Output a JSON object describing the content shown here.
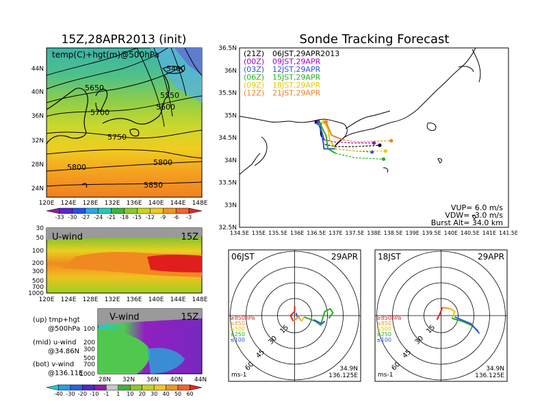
{
  "left_map": {
    "title": "15Z,28APR2013 (init)",
    "label": "temp(C)+hgt(m)@500hPa",
    "lat_ticks": [
      "44N",
      "40N",
      "36N",
      "32N",
      "28N",
      "24N"
    ],
    "lon_ticks": [
      "120E",
      "124E",
      "128E",
      "132E",
      "136E",
      "140E",
      "144E",
      "148E"
    ],
    "contour_labels": [
      "5400",
      "5650",
      "5550",
      "5600",
      "5700",
      "5750",
      "5800",
      "5800",
      "5850"
    ],
    "colorbar": [
      "-33",
      "-30",
      "-27",
      "-24",
      "-21",
      "-18",
      "-15",
      "-12",
      "-9",
      "-6",
      "-3"
    ]
  },
  "u_wind": {
    "label": "U-wind",
    "time": "15Z",
    "levels": [
      "30",
      "50",
      "100",
      "200",
      "300",
      "500",
      "700",
      "1000"
    ],
    "lon_ticks": [
      "120E",
      "124E",
      "128E",
      "132E",
      "136E",
      "140E",
      "144E",
      "148E"
    ]
  },
  "v_wind": {
    "label": "V-wind",
    "time": "15Z",
    "levels": [
      "100",
      "200",
      "300",
      "500",
      "700",
      "1000"
    ],
    "lat_ticks": [
      "28N",
      "32N",
      "36N",
      "40N",
      "44N"
    ],
    "colorbar": [
      "-40",
      "-30",
      "-20",
      "-10",
      "-1",
      "1",
      "10",
      "20",
      "30",
      "40",
      "50",
      "60"
    ]
  },
  "legend_text": {
    "up1": "(up)  tmp+hgt",
    "up2": "@500hPa",
    "mid1": "(mid)  u-wind",
    "mid2": "@34.86N",
    "bot1": "(bot)  v-wind",
    "bot2": "@136.11E"
  },
  "tracking": {
    "title": "Sonde Tracking Forecast",
    "lat_ticks": [
      "36.5N",
      "36N",
      "35.5N",
      "35N",
      "34.5N",
      "34N",
      "33.5N",
      "33N",
      "32.5N"
    ],
    "lon_ticks": [
      "134.5E",
      "135E",
      "135.5E",
      "136E",
      "136.5E",
      "137E",
      "137.5E",
      "138E",
      "138.5E",
      "139E",
      "139.5E",
      "140E",
      "140.5E",
      "141E",
      "141.5E"
    ],
    "legend": [
      {
        "time": "(21Z)",
        "label": "06JST,29APR2013",
        "color": "#000000"
      },
      {
        "time": "(00Z)",
        "label": "09JST,29APR",
        "color": "#a000c8"
      },
      {
        "time": "(03Z)",
        "label": "12JST,29APR",
        "color": "#3050e0"
      },
      {
        "time": "(06Z)",
        "label": "15JST,29APR",
        "color": "#20b020"
      },
      {
        "time": "(09Z)",
        "label": "18JST,29APR",
        "color": "#e8c800"
      },
      {
        "time": "(12Z)",
        "label": "21JST,29APR",
        "color": "#f08020"
      }
    ],
    "vup": "VUP=  6.0  m/s",
    "vdw": "VDW= -3.0  m/s",
    "burst": "Burst Alt= 34.0  km"
  },
  "hodo1": {
    "time": "06JST",
    "date": "29APR",
    "rings": [
      "15",
      "30",
      "45",
      "60"
    ],
    "legend": [
      "≥850hPa",
      "≤850",
      "≤500",
      "≤250",
      "≤100"
    ],
    "unit": "ms-1",
    "lat": "34.9N",
    "lon": "136.125E"
  },
  "hodo2": {
    "time": "18JST",
    "date": "29APR",
    "rings": [
      "15",
      "30",
      "45",
      "60"
    ],
    "legend": [
      "≥850hPa",
      "≤850",
      "≤500",
      "≤250",
      "≤100"
    ],
    "unit": "ms-1",
    "lat": "34.9N",
    "lon": "136.125E"
  },
  "chart_data": [
    {
      "type": "line",
      "title": "Sonde Tracking Forecast",
      "xlabel": "",
      "ylabel": "",
      "xlim": [
        134.5,
        141.5
      ],
      "ylim": [
        32.5,
        36.5
      ],
      "series": [
        {
          "name": "(21Z) 06JST,29APR2013",
          "x": [
            136.5,
            136.55,
            136.6,
            136.62,
            136.7,
            137.0,
            137.5,
            138.0,
            138.15
          ],
          "y": [
            34.85,
            34.85,
            34.8,
            34.55,
            34.35,
            34.3,
            34.3,
            34.32,
            34.33
          ]
        },
        {
          "name": "(00Z) 09JST,29APR",
          "x": [
            136.55,
            136.6,
            136.65,
            136.7,
            137.0,
            137.5,
            138.0
          ],
          "y": [
            34.85,
            34.75,
            34.6,
            34.45,
            34.4,
            34.38,
            34.38
          ]
        },
        {
          "name": "(03Z) 12JST,29APR",
          "x": [
            136.55,
            136.65,
            136.7,
            137.0,
            137.5,
            137.95
          ],
          "y": [
            34.82,
            34.6,
            34.25,
            34.25,
            34.2,
            34.18
          ]
        },
        {
          "name": "(06Z) 15JST,29APR",
          "x": [
            136.6,
            136.75,
            136.8,
            137.0,
            137.5,
            138.0,
            138.25
          ],
          "y": [
            34.8,
            34.55,
            34.25,
            34.15,
            34.05,
            34.03,
            34.02
          ]
        },
        {
          "name": "(09Z) 18JST,29APR",
          "x": [
            136.7,
            136.8,
            136.85,
            137.0,
            137.5,
            138.0,
            138.3
          ],
          "y": [
            34.85,
            34.7,
            34.45,
            34.25,
            34.2,
            34.2,
            34.2
          ]
        },
        {
          "name": "(12Z) 21JST,29APR",
          "x": [
            136.75,
            136.85,
            136.9,
            137.2,
            137.6,
            138.0,
            138.45
          ],
          "y": [
            34.85,
            34.65,
            34.55,
            34.45,
            34.4,
            34.42,
            34.43
          ]
        }
      ]
    }
  ]
}
